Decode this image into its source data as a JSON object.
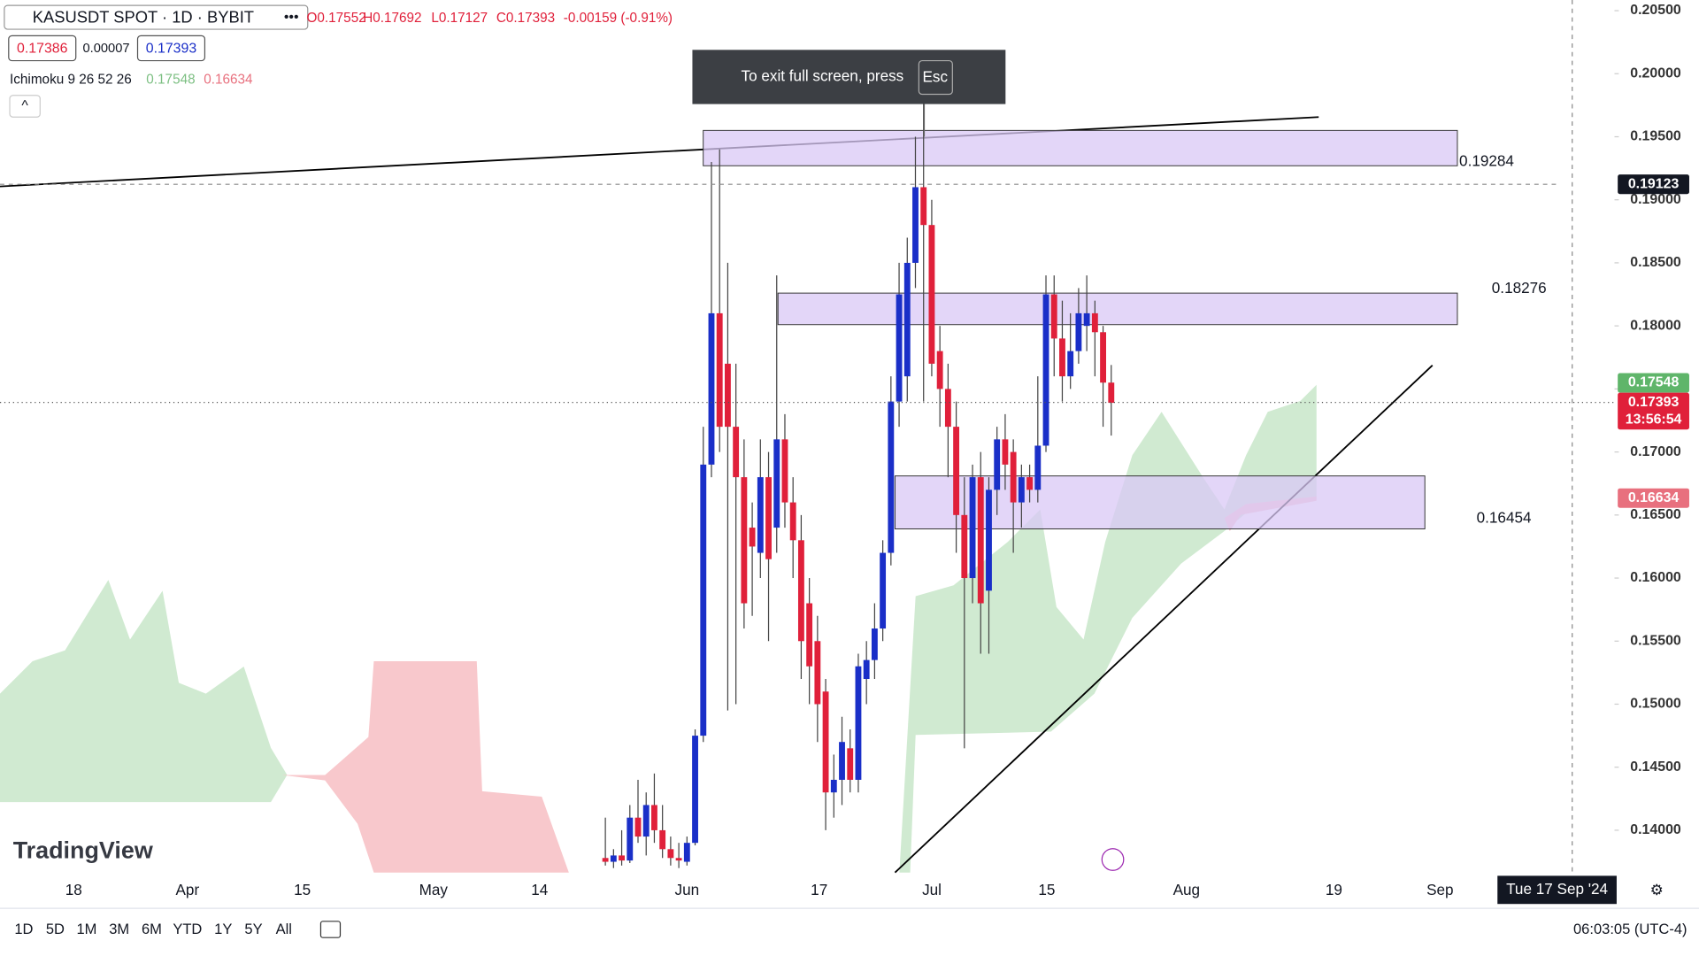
{
  "header": {
    "symbol": "KASUSDT SPOT · 1D · BYBIT",
    "ohlc": [
      "O0.17552",
      "H0.17692",
      "L0.17127",
      "C0.17393",
      "-0.00159 (-0.91%)"
    ],
    "bid": "0.17386",
    "spread": "0.00007",
    "ask": "0.17393",
    "indicator": "Ichimoku 9 26 52 26",
    "indicator_values": [
      "0.17548",
      "0.16634"
    ]
  },
  "toast": {
    "text": "To exit full screen, press",
    "key": "Esc"
  },
  "chart": {
    "yticks": [
      {
        "value": 0.205,
        "label": "0.20500"
      },
      {
        "value": 0.2,
        "label": "0.20000"
      },
      {
        "value": 0.195,
        "label": "0.19500"
      },
      {
        "value": 0.19,
        "label": "0.19000"
      },
      {
        "value": 0.185,
        "label": "0.18500"
      },
      {
        "value": 0.18,
        "label": "0.18000"
      },
      {
        "value": 0.175,
        "label": "0.17500"
      },
      {
        "value": 0.17,
        "label": "0.17000"
      },
      {
        "value": 0.165,
        "label": "0.16500"
      },
      {
        "value": 0.16,
        "label": "0.16000"
      },
      {
        "value": 0.155,
        "label": "0.15500"
      },
      {
        "value": 0.15,
        "label": "0.15000"
      },
      {
        "value": 0.145,
        "label": "0.14500"
      },
      {
        "value": 0.14,
        "label": "0.14000"
      }
    ],
    "ylim": [
      0.1385,
      0.2059
    ],
    "xlabels": [
      "18",
      "Apr",
      "15",
      "May",
      "14",
      "Jun",
      "17",
      "Jul",
      "15",
      "Aug",
      "19",
      "Sep"
    ],
    "crosshair_date": "Tue 17 Sep '24",
    "zones": [
      {
        "level": 0.19284,
        "high": 0.1955,
        "low": 0.1927
      },
      {
        "level": 0.18276,
        "high": 0.1826,
        "low": 0.1801
      },
      {
        "level": 0.16454,
        "high": 0.1681,
        "low": 0.1639
      }
    ],
    "price_tags": [
      {
        "value": 0.19123,
        "label": "0.19123",
        "color": "#131722"
      },
      {
        "value": 0.17548,
        "label": "0.17548",
        "color": "#5fb56a"
      },
      {
        "value": 0.17393,
        "label": "0.17393",
        "color": "#e0203a",
        "countdown": "13:56:54"
      },
      {
        "value": 0.16634,
        "label": "0.16634",
        "color": "#e8707e"
      }
    ],
    "up_color": "#1a2fc8",
    "down_color": "#e0203a",
    "candles": [
      [
        0.1378,
        0.141,
        0.1372,
        0.1375
      ],
      [
        0.1375,
        0.1385,
        0.137,
        0.138
      ],
      [
        0.138,
        0.14,
        0.1372,
        0.1376
      ],
      [
        0.1376,
        0.142,
        0.1374,
        0.141
      ],
      [
        0.141,
        0.144,
        0.139,
        0.1395
      ],
      [
        0.1395,
        0.143,
        0.138,
        0.142
      ],
      [
        0.142,
        0.1445,
        0.139,
        0.14
      ],
      [
        0.14,
        0.142,
        0.1378,
        0.1385
      ],
      [
        0.1385,
        0.1395,
        0.1372,
        0.1378
      ],
      [
        0.1378,
        0.139,
        0.137,
        0.1376
      ],
      [
        0.1375,
        0.1395,
        0.1372,
        0.139
      ],
      [
        0.139,
        0.148,
        0.1388,
        0.1475
      ],
      [
        0.1475,
        0.172,
        0.147,
        0.169
      ],
      [
        0.169,
        0.193,
        0.168,
        0.181
      ],
      [
        0.181,
        0.194,
        0.17,
        0.172
      ],
      [
        0.177,
        0.185,
        0.1495,
        0.172
      ],
      [
        0.172,
        0.177,
        0.15,
        0.168
      ],
      [
        0.168,
        0.171,
        0.156,
        0.158
      ],
      [
        0.164,
        0.166,
        0.157,
        0.1625
      ],
      [
        0.162,
        0.171,
        0.16,
        0.168
      ],
      [
        0.168,
        0.17,
        0.155,
        0.1615
      ],
      [
        0.164,
        0.184,
        0.162,
        0.171
      ],
      [
        0.171,
        0.173,
        0.164,
        0.166
      ],
      [
        0.166,
        0.168,
        0.16,
        0.163
      ],
      [
        0.163,
        0.165,
        0.152,
        0.155
      ],
      [
        0.158,
        0.16,
        0.15,
        0.153
      ],
      [
        0.155,
        0.157,
        0.147,
        0.15
      ],
      [
        0.151,
        0.152,
        0.14,
        0.143
      ],
      [
        0.143,
        0.146,
        0.141,
        0.144
      ],
      [
        0.144,
        0.149,
        0.142,
        0.147
      ],
      [
        0.1465,
        0.148,
        0.143,
        0.144
      ],
      [
        0.144,
        0.154,
        0.143,
        0.153
      ],
      [
        0.152,
        0.155,
        0.15,
        0.1535
      ],
      [
        0.1535,
        0.158,
        0.152,
        0.156
      ],
      [
        0.156,
        0.163,
        0.155,
        0.162
      ],
      [
        0.162,
        0.176,
        0.161,
        0.174
      ],
      [
        0.174,
        0.185,
        0.172,
        0.1825
      ],
      [
        0.176,
        0.187,
        0.174,
        0.185
      ],
      [
        0.185,
        0.195,
        0.183,
        0.191
      ],
      [
        0.191,
        0.198,
        0.174,
        0.188
      ],
      [
        0.188,
        0.19,
        0.176,
        0.177
      ],
      [
        0.178,
        0.18,
        0.172,
        0.175
      ],
      [
        0.175,
        0.177,
        0.168,
        0.172
      ],
      [
        0.172,
        0.174,
        0.162,
        0.165
      ],
      [
        0.165,
        0.168,
        0.1465,
        0.16
      ],
      [
        0.16,
        0.169,
        0.158,
        0.168
      ],
      [
        0.168,
        0.17,
        0.154,
        0.158
      ],
      [
        0.159,
        0.168,
        0.154,
        0.167
      ],
      [
        0.167,
        0.172,
        0.165,
        0.171
      ],
      [
        0.171,
        0.173,
        0.167,
        0.169
      ],
      [
        0.17,
        0.171,
        0.162,
        0.166
      ],
      [
        0.166,
        0.169,
        0.164,
        0.168
      ],
      [
        0.168,
        0.169,
        0.166,
        0.167
      ],
      [
        0.167,
        0.176,
        0.166,
        0.1705
      ],
      [
        0.1705,
        0.184,
        0.17,
        0.1825
      ],
      [
        0.1825,
        0.184,
        0.176,
        0.179
      ],
      [
        0.179,
        0.182,
        0.174,
        0.176
      ],
      [
        0.176,
        0.181,
        0.175,
        0.178
      ],
      [
        0.178,
        0.183,
        0.177,
        0.181
      ],
      [
        0.18,
        0.184,
        0.178,
        0.181
      ],
      [
        0.181,
        0.182,
        0.176,
        0.1795
      ],
      [
        0.1795,
        0.18,
        0.172,
        0.1755
      ],
      [
        0.1755,
        0.1769,
        0.1713,
        0.1739
      ]
    ]
  },
  "watermark": "TradingView",
  "footer": {
    "ranges": [
      "1D",
      "5D",
      "1M",
      "3M",
      "6M",
      "YTD",
      "1Y",
      "5Y",
      "All"
    ],
    "clock": "06:03:05 (UTC-4)"
  }
}
